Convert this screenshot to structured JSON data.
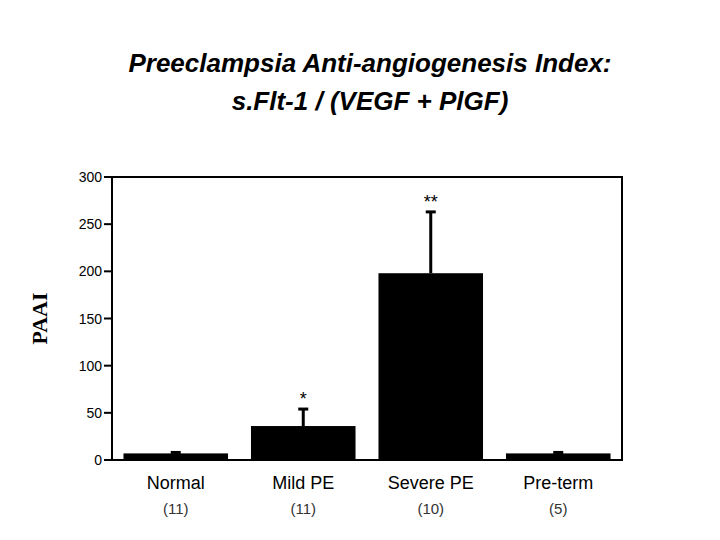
{
  "chart_data": {
    "type": "bar",
    "title": [
      "Preeclampsia Anti-angiogenesis Index:",
      "s.Flt-1 / (VEGF + PlGF)"
    ],
    "y_label": "PAAI",
    "categories": [
      "Normal",
      "Mild PE",
      "Severe PE",
      "Pre-term"
    ],
    "sample_size_labels": [
      "(11)",
      "(11)",
      "(10)",
      "(5)"
    ],
    "values": [
      7,
      36,
      198,
      7
    ],
    "errors": [
      1,
      18,
      65,
      1
    ],
    "annotations": [
      null,
      "*",
      "**",
      null
    ],
    "color": "#000000",
    "ylim": [
      0,
      300
    ],
    "yticks": [
      0,
      50,
      100,
      150,
      200,
      250,
      300
    ],
    "grid": false
  }
}
